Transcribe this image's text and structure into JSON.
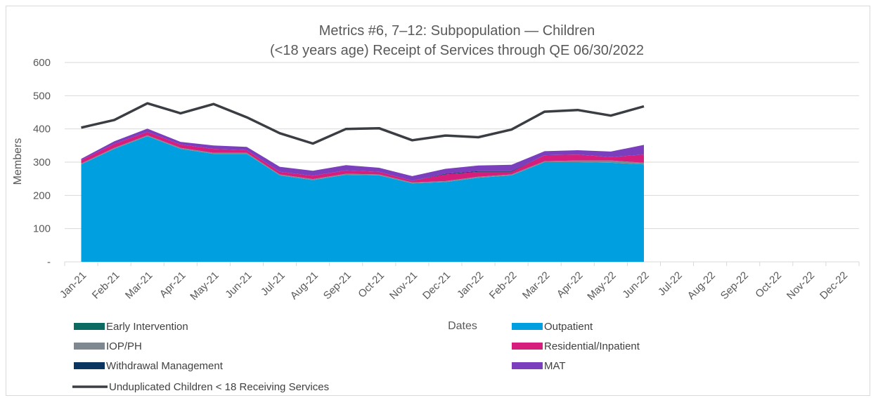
{
  "chart_data": {
    "type": "area",
    "title": "Metrics #6, 7–12: Subpopulation — Children",
    "subtitle": "(<18 years age) Receipt of Services through QE 06/30/2022",
    "xlabel": "Dates",
    "ylabel": "Members",
    "ylim": [
      0,
      600
    ],
    "y_ticks": [
      "-",
      "100",
      "200",
      "300",
      "400",
      "500",
      "600"
    ],
    "categories": [
      "Jan-21",
      "Feb-21",
      "Mar-21",
      "Apr-21",
      "May-21",
      "Jun-21",
      "Jul-21",
      "Aug-21",
      "Sep-21",
      "Oct-21",
      "Nov-21",
      "Dec-21",
      "Jan-22",
      "Feb-22",
      "Mar-22",
      "Apr-22",
      "May-22",
      "Jun-22",
      "Jul-22",
      "Aug-22",
      "Sep-22",
      "Oct-22",
      "Nov-22",
      "Dec-22"
    ],
    "grid": true,
    "legend_position": "bottom",
    "stacked_series": [
      {
        "name": "Outpatient",
        "color": "#009fe0",
        "values": [
          293,
          340,
          378,
          340,
          325,
          325,
          260,
          246,
          262,
          260,
          236,
          240,
          253,
          260,
          300,
          300,
          298,
          293
        ]
      },
      {
        "name": "IOP/PH",
        "color": "#7f8891",
        "values": [
          3,
          3,
          3,
          3,
          3,
          3,
          3,
          3,
          3,
          3,
          3,
          3,
          3,
          3,
          3,
          5,
          7,
          5
        ]
      },
      {
        "name": "Residential/Inpatient",
        "color": "#d61f7d",
        "values": [
          10,
          12,
          10,
          10,
          12,
          8,
          8,
          10,
          10,
          8,
          5,
          20,
          15,
          8,
          18,
          18,
          10,
          25
        ]
      },
      {
        "name": "Withdrawal Management",
        "color": "#0a3561",
        "values": [
          0,
          0,
          0,
          0,
          0,
          0,
          0,
          0,
          0,
          0,
          0,
          2,
          2,
          2,
          0,
          0,
          0,
          0
        ]
      },
      {
        "name": "Early Intervention",
        "color": "#0b6b63",
        "values": [
          0,
          0,
          0,
          0,
          0,
          0,
          0,
          0,
          0,
          0,
          0,
          0,
          0,
          0,
          0,
          0,
          0,
          0
        ]
      },
      {
        "name": "MAT",
        "color": "#7b3fbe",
        "values": [
          4,
          8,
          10,
          8,
          10,
          10,
          15,
          15,
          16,
          12,
          14,
          15,
          17,
          19,
          12,
          13,
          17,
          29
        ]
      }
    ],
    "line_series": {
      "name": "Unduplicated Children < 18 Receiving Services",
      "color": "#3a3d42",
      "values": [
        404,
        427,
        477,
        447,
        475,
        435,
        387,
        356,
        400,
        402,
        366,
        380,
        375,
        398,
        452,
        457,
        440,
        468
      ]
    },
    "legend": [
      {
        "name": "Early Intervention",
        "color": "#0b6b63",
        "kind": "box"
      },
      {
        "name": "Outpatient",
        "color": "#009fe0",
        "kind": "box"
      },
      {
        "name": "IOP/PH",
        "color": "#7f8891",
        "kind": "box"
      },
      {
        "name": "Residential/Inpatient",
        "color": "#d61f7d",
        "kind": "box"
      },
      {
        "name": "Withdrawal Management",
        "color": "#0a3561",
        "kind": "box"
      },
      {
        "name": "MAT",
        "color": "#7b3fbe",
        "kind": "box"
      },
      {
        "name": "Unduplicated Children < 18 Receiving Services",
        "color": "#3a3d42",
        "kind": "line"
      }
    ]
  }
}
